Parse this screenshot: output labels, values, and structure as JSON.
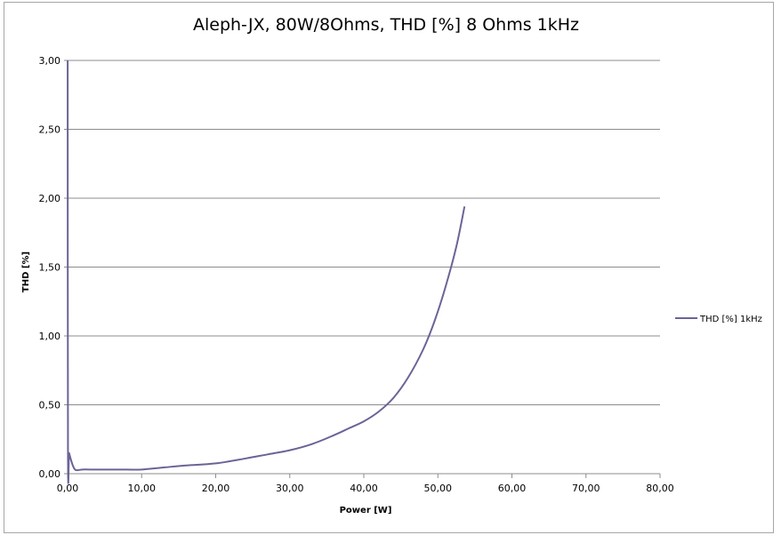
{
  "chart_data": {
    "type": "line",
    "title": "Aleph-JX, 80W/8Ohms, THD [%] 8 Ohms 1kHz",
    "xlabel": "Power [W]",
    "ylabel": "THD [%]",
    "xlim": [
      0,
      80
    ],
    "ylim": [
      0,
      3
    ],
    "x_ticks": [
      "0,00",
      "10,00",
      "20,00",
      "30,00",
      "40,00",
      "50,00",
      "60,00",
      "70,00",
      "80,00"
    ],
    "y_ticks": [
      "0,00",
      "0,50",
      "1,00",
      "1,50",
      "2,00",
      "2,50",
      "3,00"
    ],
    "x_tick_values": [
      0,
      10,
      20,
      30,
      40,
      50,
      60,
      70,
      80
    ],
    "y_tick_values": [
      0,
      0.5,
      1,
      1.5,
      2,
      2.5,
      3
    ],
    "grid": "horizontal",
    "legend_position": "right",
    "series": [
      {
        "name": "THD [%] 1kHz",
        "color": "#6a6496",
        "x": [
          0.01,
          0.05,
          0.2,
          0.4,
          0.7,
          1.0,
          1.3,
          2,
          3,
          5,
          8,
          10,
          13,
          16,
          20,
          24,
          27,
          30,
          33,
          36,
          38,
          40,
          42,
          44,
          46,
          48,
          49.5,
          51,
          52.5,
          53.6
        ],
        "values": [
          3.0,
          0.16,
          0.15,
          0.11,
          0.06,
          0.03,
          0.025,
          0.03,
          0.03,
          0.03,
          0.03,
          0.03,
          0.045,
          0.06,
          0.075,
          0.11,
          0.14,
          0.17,
          0.215,
          0.28,
          0.33,
          0.38,
          0.45,
          0.55,
          0.7,
          0.9,
          1.1,
          1.35,
          1.65,
          1.94
        ]
      }
    ]
  }
}
